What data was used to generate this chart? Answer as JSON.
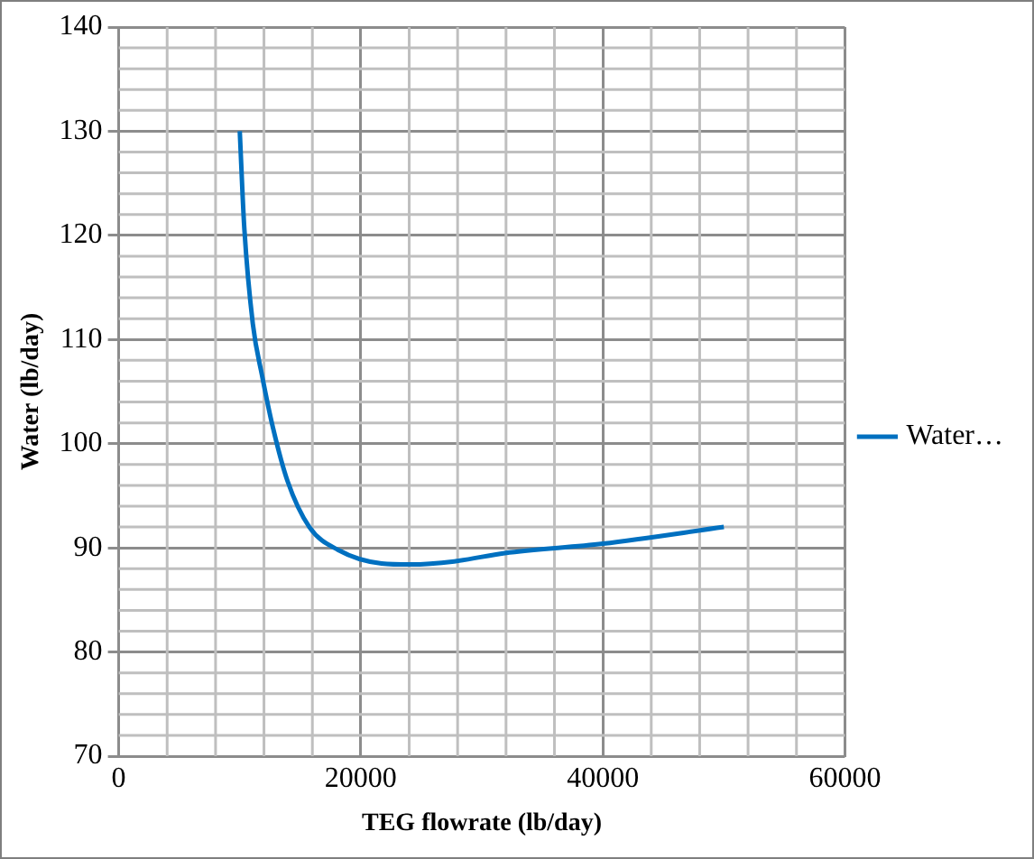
{
  "chart_data": {
    "type": "line",
    "xlabel": "TEG flowrate (lb/day)",
    "ylabel": "Water (lb/day)",
    "xlim": [
      0,
      60000
    ],
    "xticks": [
      0,
      20000,
      40000,
      60000
    ],
    "ylim": [
      70,
      140
    ],
    "yticks": [
      70,
      80,
      90,
      100,
      110,
      120,
      130,
      140
    ],
    "grid": true,
    "legend": "right",
    "marker": "none",
    "line_style": "solid",
    "series": [
      {
        "name": "Water…",
        "color": "#0070c0",
        "x": [
          10000,
          10360,
          11080,
          11850,
          12750,
          13950,
          15750,
          18130,
          21720,
          24130,
          27720,
          31900,
          40000,
          50000
        ],
        "values": [
          130,
          121,
          111.5,
          106.5,
          101.5,
          96.4,
          92,
          89.8,
          88.5,
          88.4,
          88.7,
          89.5,
          90.4,
          92
        ]
      }
    ]
  }
}
